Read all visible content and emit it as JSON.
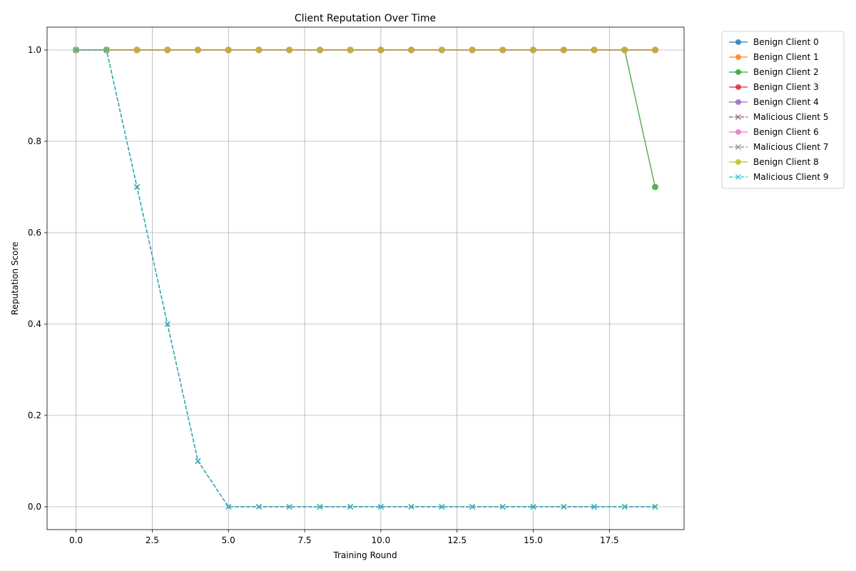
{
  "chart_data": {
    "type": "line",
    "title": "Client Reputation Over Time",
    "xlabel": "Training Round",
    "ylabel": "Reputation Score",
    "xlim": [
      -0.95,
      19.95
    ],
    "ylim": [
      -0.05,
      1.05
    ],
    "x_ticks": [
      0.0,
      2.5,
      5.0,
      7.5,
      10.0,
      12.5,
      15.0,
      17.5
    ],
    "x_tick_labels": [
      "0.0",
      "2.5",
      "5.0",
      "7.5",
      "10.0",
      "12.5",
      "15.0",
      "17.5"
    ],
    "y_ticks": [
      0.0,
      0.2,
      0.4,
      0.6,
      0.8,
      1.0
    ],
    "y_tick_labels": [
      "0.0",
      "0.2",
      "0.4",
      "0.6",
      "0.8",
      "1.0"
    ],
    "grid": true,
    "legend_position": "outside-top-right",
    "x": [
      0,
      1,
      2,
      3,
      4,
      5,
      6,
      7,
      8,
      9,
      10,
      11,
      12,
      13,
      14,
      15,
      16,
      17,
      18,
      19
    ],
    "series": [
      {
        "name": "Benign Client 0",
        "color": "#1f77b4",
        "marker": "circle",
        "linestyle": "solid",
        "values": [
          1,
          1,
          1,
          1,
          1,
          1,
          1,
          1,
          1,
          1,
          1,
          1,
          1,
          1,
          1,
          1,
          1,
          1,
          1,
          1
        ]
      },
      {
        "name": "Benign Client 1",
        "color": "#ff7f0e",
        "marker": "circle",
        "linestyle": "solid",
        "values": [
          1,
          1,
          1,
          1,
          1,
          1,
          1,
          1,
          1,
          1,
          1,
          1,
          1,
          1,
          1,
          1,
          1,
          1,
          1,
          1
        ]
      },
      {
        "name": "Benign Client 2",
        "color": "#2ca02c",
        "marker": "circle",
        "linestyle": "solid",
        "values": [
          1,
          1,
          1,
          1,
          1,
          1,
          1,
          1,
          1,
          1,
          1,
          1,
          1,
          1,
          1,
          1,
          1,
          1,
          1,
          0.7
        ]
      },
      {
        "name": "Benign Client 3",
        "color": "#d62728",
        "marker": "circle",
        "linestyle": "solid",
        "values": [
          1,
          1,
          1,
          1,
          1,
          1,
          1,
          1,
          1,
          1,
          1,
          1,
          1,
          1,
          1,
          1,
          1,
          1,
          1,
          1
        ]
      },
      {
        "name": "Benign Client 4",
        "color": "#9467bd",
        "marker": "circle",
        "linestyle": "solid",
        "values": [
          1,
          1,
          1,
          1,
          1,
          1,
          1,
          1,
          1,
          1,
          1,
          1,
          1,
          1,
          1,
          1,
          1,
          1,
          1,
          1
        ]
      },
      {
        "name": "Malicious Client 5",
        "color": "#8c564b",
        "marker": "x",
        "linestyle": "dashed",
        "values": [
          1,
          1,
          0.7,
          0.4,
          0.1,
          0,
          0,
          0,
          0,
          0,
          0,
          0,
          0,
          0,
          0,
          0,
          0,
          0,
          0,
          0
        ]
      },
      {
        "name": "Benign Client 6",
        "color": "#e377c2",
        "marker": "circle",
        "linestyle": "solid",
        "values": [
          1,
          1,
          1,
          1,
          1,
          1,
          1,
          1,
          1,
          1,
          1,
          1,
          1,
          1,
          1,
          1,
          1,
          1,
          1,
          1
        ]
      },
      {
        "name": "Malicious Client 7",
        "color": "#7f7f7f",
        "marker": "x",
        "linestyle": "dashed",
        "values": [
          1,
          1,
          0.7,
          0.4,
          0.1,
          0,
          0,
          0,
          0,
          0,
          0,
          0,
          0,
          0,
          0,
          0,
          0,
          0,
          0,
          0
        ]
      },
      {
        "name": "Benign Client 8",
        "color": "#bcbd22",
        "marker": "circle",
        "linestyle": "solid",
        "values": [
          1,
          1,
          1,
          1,
          1,
          1,
          1,
          1,
          1,
          1,
          1,
          1,
          1,
          1,
          1,
          1,
          1,
          1,
          1,
          1
        ]
      },
      {
        "name": "Malicious Client 9",
        "color": "#17becf",
        "marker": "x",
        "linestyle": "dashed",
        "values": [
          1,
          1,
          0.7,
          0.4,
          0.1,
          0,
          0,
          0,
          0,
          0,
          0,
          0,
          0,
          0,
          0,
          0,
          0,
          0,
          0,
          0
        ]
      }
    ]
  }
}
